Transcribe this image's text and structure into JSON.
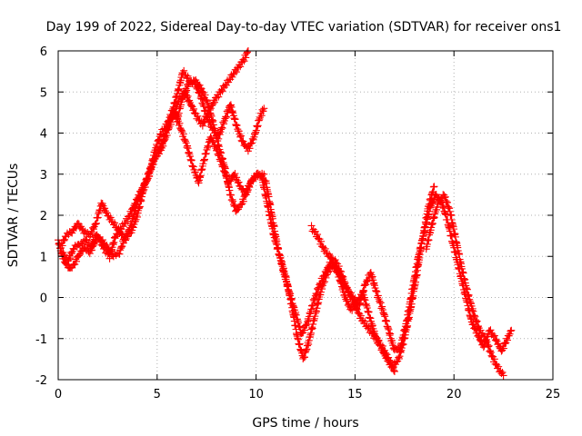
{
  "chart_data": {
    "type": "scatter",
    "title": "Day 199 of 2022, Sidereal Day-to-day VTEC variation (SDTVAR) for receiver ons1",
    "xlabel": "GPS time / hours",
    "ylabel": "SDTVAR / TECUs",
    "xlim": [
      0,
      25
    ],
    "ylim": [
      -2,
      6
    ],
    "xticks": [
      "0",
      "5",
      "10",
      "15",
      "20",
      "25"
    ],
    "yticks": [
      "-2",
      "-1",
      "0",
      "1",
      "2",
      "3",
      "4",
      "5",
      "6"
    ],
    "grid": true,
    "marker": "+",
    "color": "#ff0000",
    "series": [
      {
        "x": [
          0.0,
          0.2,
          0.4,
          0.6,
          0.8,
          1.0,
          1.3,
          1.6,
          1.9,
          2.2,
          2.5,
          2.8,
          3.1,
          3.4,
          3.7,
          4.0,
          4.3,
          4.6,
          4.9,
          5.2,
          5.5,
          5.8,
          6.1,
          6.4,
          6.7,
          7.0,
          7.3,
          7.6,
          7.9,
          8.2,
          8.5,
          8.8,
          9.1,
          9.4,
          9.6
        ],
        "values": [
          1.4,
          1.0,
          0.8,
          0.7,
          0.8,
          1.0,
          1.2,
          1.1,
          1.5,
          1.4,
          1.2,
          1.0,
          1.1,
          1.5,
          1.6,
          2.0,
          2.6,
          3.0,
          3.4,
          3.6,
          4.0,
          4.4,
          4.8,
          5.0,
          4.7,
          4.4,
          4.2,
          4.5,
          4.8,
          5.0,
          5.2,
          5.4,
          5.6,
          5.8,
          6.0
        ]
      },
      {
        "x": [
          0.1,
          0.4,
          0.7,
          1.0,
          1.3,
          1.6,
          1.9,
          2.2,
          2.5,
          2.8,
          3.1,
          3.4,
          3.7,
          4.0,
          4.3,
          4.6,
          4.9,
          5.2,
          5.5,
          5.8,
          6.1,
          6.3,
          6.6,
          6.9,
          7.2,
          7.5,
          7.8,
          8.1,
          8.4,
          8.7,
          9.0,
          9.3,
          9.6,
          9.9,
          10.2,
          10.4
        ],
        "values": [
          1.2,
          1.5,
          1.6,
          1.8,
          1.6,
          1.5,
          1.8,
          2.3,
          2.0,
          1.8,
          1.6,
          1.4,
          1.8,
          2.3,
          2.7,
          3.0,
          3.6,
          4.0,
          4.2,
          4.6,
          5.1,
          5.5,
          5.3,
          5.2,
          4.9,
          4.4,
          4.1,
          3.9,
          4.3,
          4.7,
          4.2,
          3.8,
          3.6,
          3.9,
          4.4,
          4.6
        ]
      },
      {
        "x": [
          0.2,
          0.5,
          0.8,
          1.1,
          1.4,
          1.7,
          2.0,
          2.3,
          2.6,
          2.9,
          3.2,
          3.5,
          3.8,
          4.1,
          4.4,
          4.7,
          5.0,
          5.3,
          5.6,
          5.9,
          6.2,
          6.5,
          6.8,
          7.1,
          7.4,
          7.7,
          8.0,
          8.3,
          8.6,
          8.9,
          9.2,
          9.5,
          9.8,
          10.1,
          10.4
        ],
        "values": [
          1.1,
          0.9,
          1.2,
          1.3,
          1.4,
          1.2,
          1.5,
          1.2,
          1.0,
          1.5,
          1.7,
          1.9,
          2.2,
          2.5,
          2.8,
          3.2,
          3.5,
          3.8,
          4.3,
          4.5,
          4.1,
          3.7,
          3.2,
          2.8,
          3.4,
          3.9,
          3.6,
          3.2,
          2.8,
          3.0,
          2.7,
          2.5,
          2.9,
          3.0,
          3.0
        ]
      },
      {
        "x": [
          6.0,
          6.3,
          6.6,
          6.9,
          7.2,
          7.5,
          7.8,
          8.1,
          8.4,
          8.7,
          9.0,
          9.3,
          9.6,
          9.9,
          10.2,
          10.5,
          10.8,
          11.1,
          11.4,
          11.7,
          12.0,
          12.3,
          12.6,
          12.9,
          13.2,
          13.5,
          13.8,
          14.1,
          14.4,
          14.7,
          15.0,
          15.3,
          15.6,
          15.9,
          16.2,
          16.5,
          16.8,
          17.0
        ],
        "values": [
          4.3,
          4.9,
          5.2,
          5.3,
          5.1,
          4.8,
          4.3,
          3.7,
          3.2,
          2.5,
          2.1,
          2.3,
          2.7,
          2.9,
          3.0,
          2.8,
          2.0,
          1.2,
          0.6,
          0.1,
          -0.4,
          -0.9,
          -0.6,
          -0.1,
          0.3,
          0.6,
          0.9,
          0.7,
          0.4,
          0.1,
          -0.2,
          -0.5,
          -0.7,
          -0.9,
          -1.1,
          -1.3,
          -1.6,
          -1.8
        ]
      },
      {
        "x": [
          10.3,
          10.6,
          10.9,
          11.2,
          11.5,
          11.8,
          12.1,
          12.4,
          12.7,
          13.0,
          13.3,
          13.6,
          13.9,
          14.2,
          14.5,
          14.8,
          15.1,
          15.4,
          15.7,
          16.0,
          16.3,
          16.6,
          16.9,
          17.2,
          17.5,
          17.8,
          18.1,
          18.4,
          18.7,
          19.0
        ],
        "values": [
          2.9,
          2.2,
          1.5,
          1.0,
          0.5,
          -0.2,
          -1.0,
          -1.5,
          -1.0,
          -0.4,
          0.2,
          0.6,
          0.8,
          0.5,
          0.0,
          -0.3,
          -0.1,
          0.1,
          -0.4,
          -0.9,
          -1.2,
          -1.5,
          -1.7,
          -1.5,
          -1.0,
          -0.3,
          0.5,
          1.4,
          2.2,
          2.7
        ]
      },
      {
        "x": [
          12.8,
          13.1,
          13.4,
          13.7,
          14.0,
          14.3,
          14.6,
          14.9,
          15.2,
          15.5,
          15.8,
          16.1,
          16.4,
          16.7,
          17.0,
          17.3,
          17.6,
          17.9,
          18.2,
          18.5,
          18.8,
          19.1,
          19.4,
          19.7,
          20.0,
          20.3,
          20.6,
          20.9,
          21.2,
          21.5,
          21.8,
          22.1,
          22.4,
          22.7,
          22.9
        ],
        "values": [
          1.7,
          1.5,
          1.2,
          1.0,
          0.9,
          0.6,
          0.2,
          0.0,
          -0.2,
          0.3,
          0.6,
          0.1,
          -0.3,
          -0.8,
          -1.3,
          -1.2,
          -0.6,
          0.2,
          1.0,
          1.6,
          2.2,
          2.5,
          2.3,
          1.8,
          1.2,
          0.6,
          0.0,
          -0.6,
          -0.9,
          -1.2,
          -0.8,
          -1.0,
          -1.3,
          -1.0,
          -0.8
        ]
      },
      {
        "x": [
          18.6,
          18.9,
          19.2,
          19.5,
          19.8,
          20.1,
          20.4,
          20.7,
          21.0,
          21.3,
          21.6,
          21.9,
          22.2,
          22.5
        ],
        "values": [
          1.2,
          1.8,
          2.3,
          2.5,
          2.1,
          1.4,
          0.7,
          0.1,
          -0.4,
          -0.8,
          -1.0,
          -1.4,
          -1.7,
          -1.9
        ]
      }
    ]
  }
}
